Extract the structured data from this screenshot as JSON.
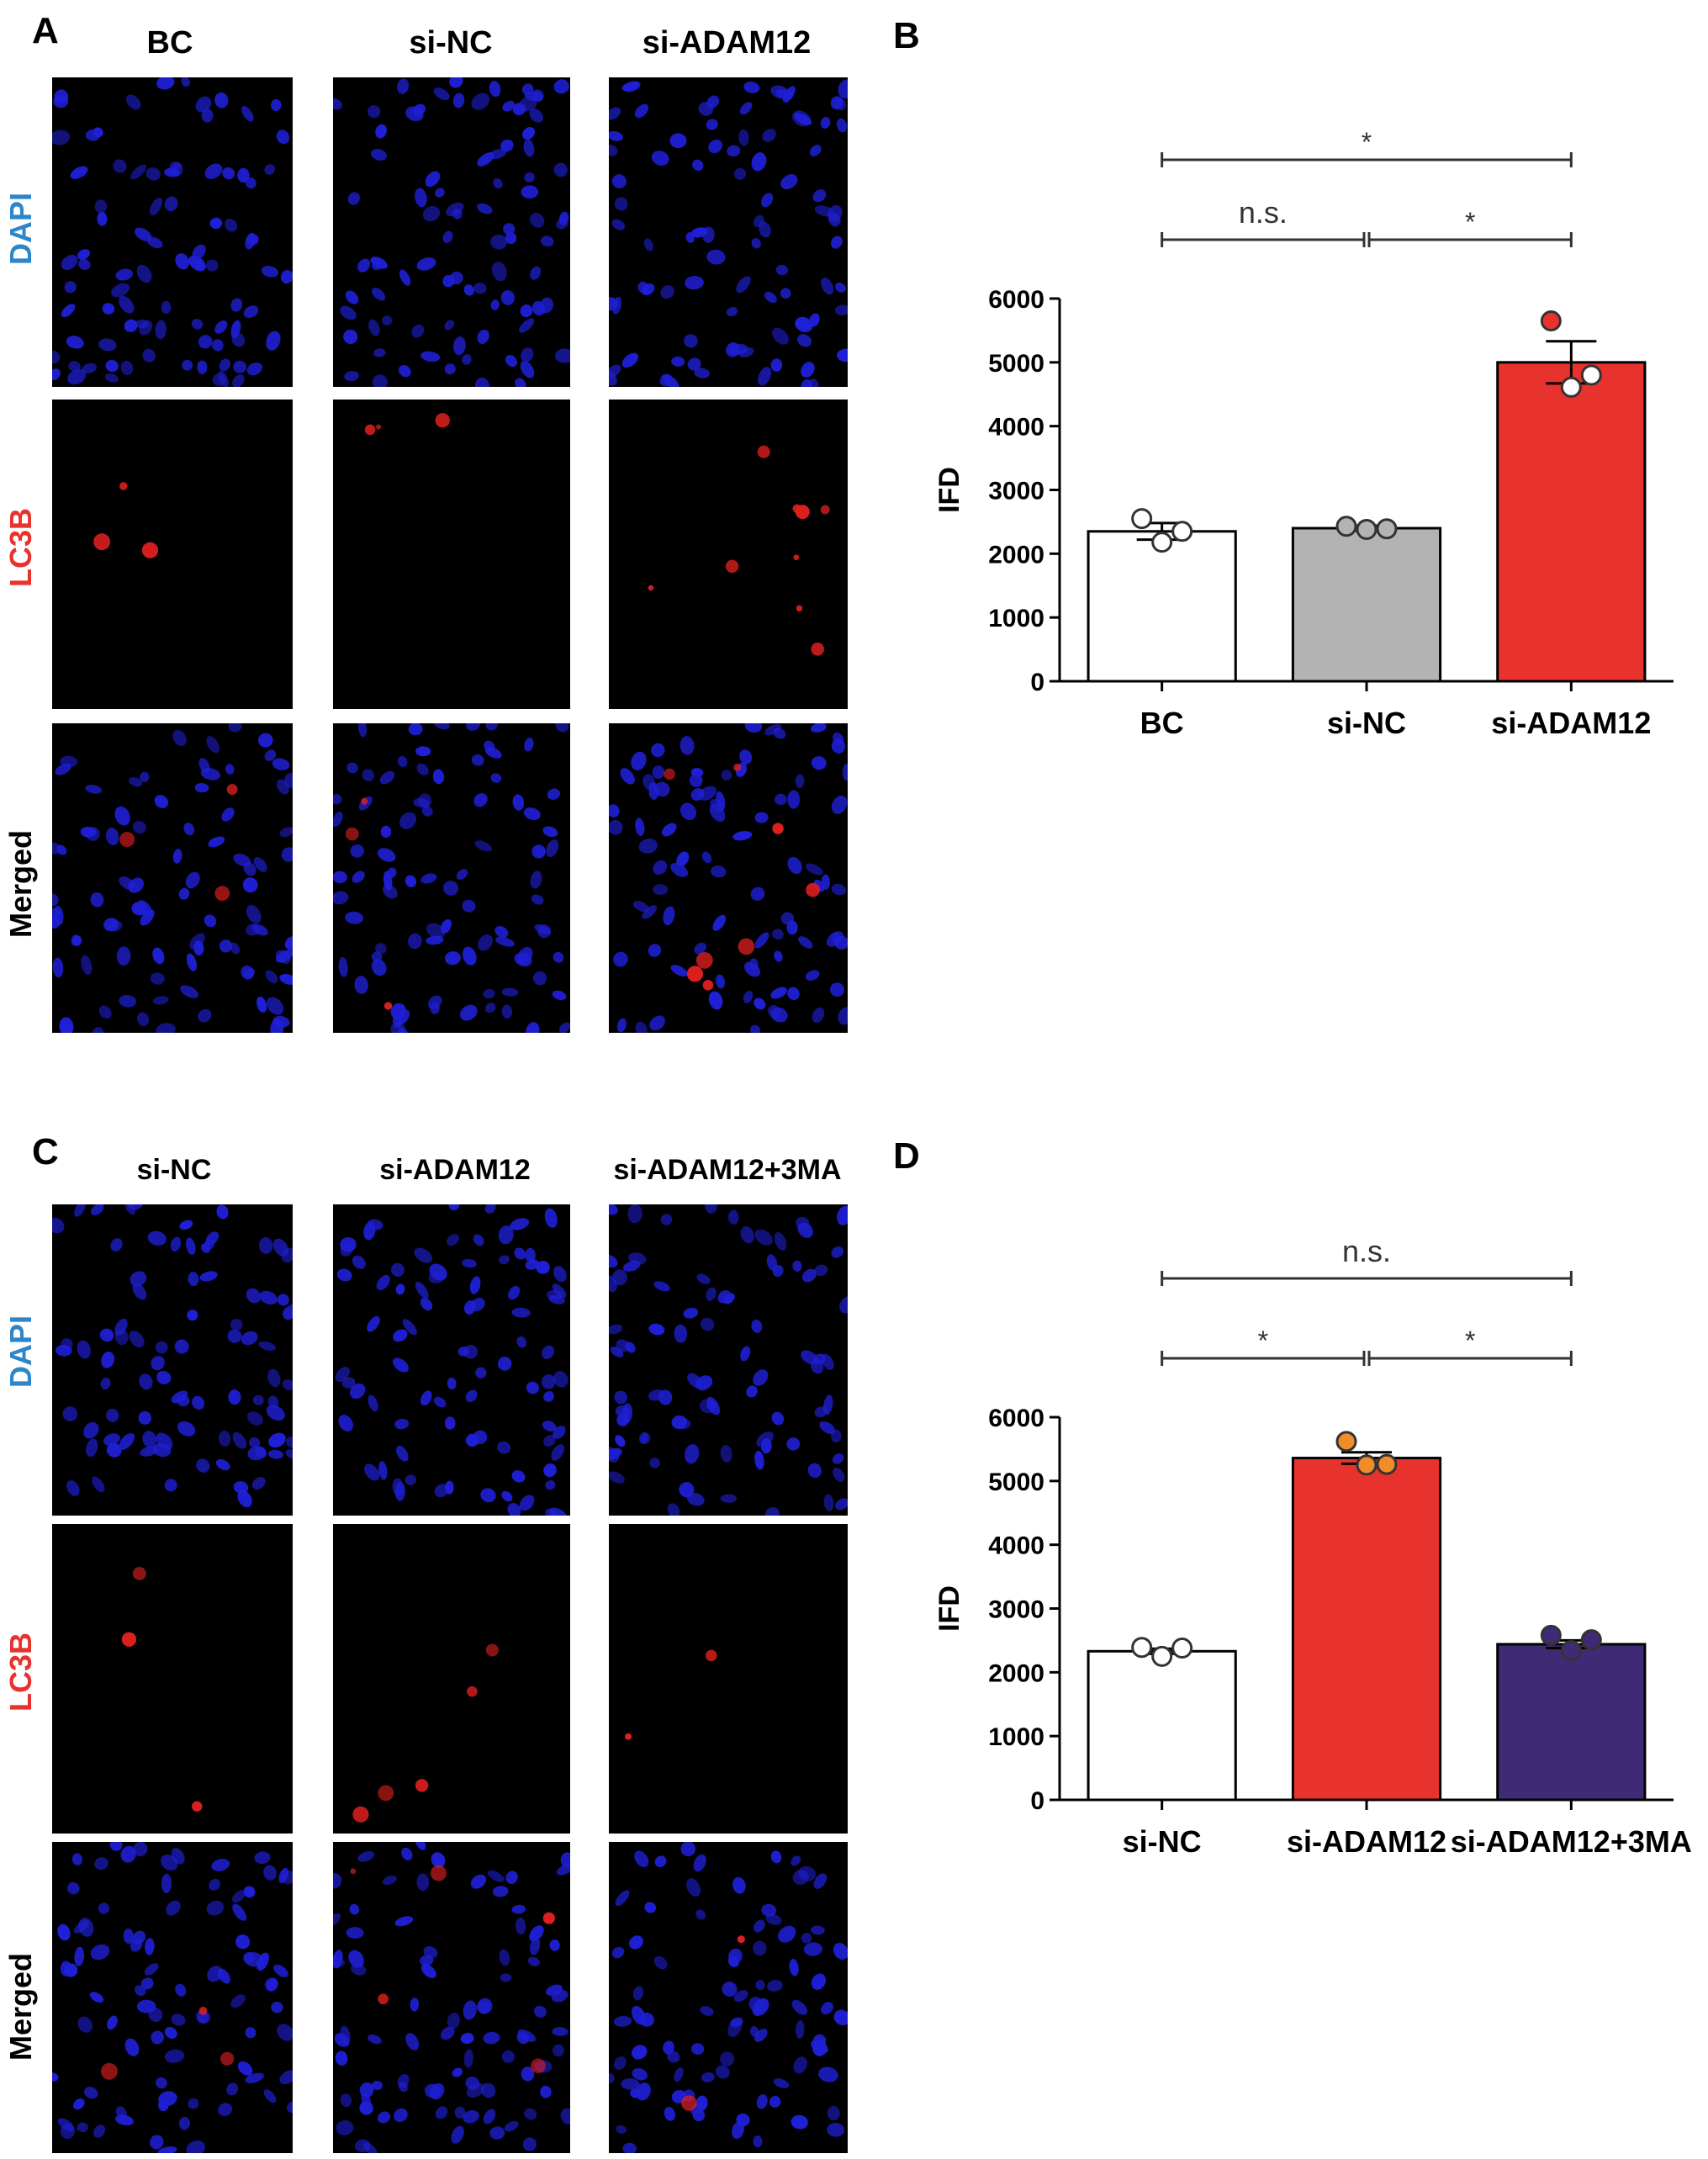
{
  "panels": {
    "A": {
      "letter": "A",
      "columns": [
        "BC",
        "si-NC",
        "si-ADAM12"
      ],
      "rows": [
        "DAPI",
        "LC3B",
        "Merged"
      ]
    },
    "B": {
      "letter": "B"
    },
    "C": {
      "letter": "C",
      "columns": [
        "si-NC",
        "si-ADAM12",
        "si-ADAM12+3MA"
      ],
      "rows": [
        "DAPI",
        "LC3B",
        "Merged"
      ]
    },
    "D": {
      "letter": "D"
    }
  },
  "colors": {
    "dapi_label": "#2e86c9",
    "lc3b_label": "#e8322e",
    "nuclei": "#1f1fd6",
    "puncta": "#e02020"
  },
  "chart_data": [
    {
      "panel": "B",
      "type": "bar",
      "categories": [
        "BC",
        "si-NC",
        "si-ADAM12"
      ],
      "values": [
        2350,
        2400,
        5000
      ],
      "sem": [
        130,
        40,
        330
      ],
      "points": [
        [
          2550,
          2180,
          2350
        ],
        [
          2430,
          2380,
          2390
        ],
        [
          5650,
          4610,
          4800
        ]
      ],
      "bar_colors": [
        "#ffffff",
        "#b3b3b3",
        "#e8322e"
      ],
      "point_fills": [
        "#ffffff",
        "#b3b3b3",
        "mixed"
      ],
      "ylabel": "IFD",
      "ylim": [
        0,
        6000
      ],
      "yticks": [
        "0",
        "1000",
        "2000",
        "3000",
        "4000",
        "5000",
        "6000"
      ],
      "significance": [
        {
          "from": 0,
          "to": 2,
          "label": "*"
        },
        {
          "from": 0,
          "to": 1,
          "label": "n.s."
        },
        {
          "from": 1,
          "to": 2,
          "label": "*"
        }
      ]
    },
    {
      "panel": "D",
      "type": "bar",
      "categories": [
        "si-NC",
        "si-ADAM12",
        "si-ADAM12+3MA"
      ],
      "values": [
        2330,
        5360,
        2440
      ],
      "sem": [
        40,
        90,
        60
      ],
      "points": [
        [
          2390,
          2250,
          2380
        ],
        [
          5620,
          5250,
          5260
        ],
        [
          2580,
          2340,
          2510
        ]
      ],
      "bar_colors": [
        "#ffffff",
        "#e8322e",
        "#3f2a75"
      ],
      "point_fills": [
        "#ffffff",
        "#f28c28",
        "#3f2a75"
      ],
      "ylabel": "IFD",
      "ylim": [
        0,
        6000
      ],
      "yticks": [
        "0",
        "1000",
        "2000",
        "3000",
        "4000",
        "5000",
        "6000"
      ],
      "significance": [
        {
          "from": 0,
          "to": 2,
          "label": "n.s."
        },
        {
          "from": 0,
          "to": 1,
          "label": "*"
        },
        {
          "from": 1,
          "to": 2,
          "label": "*"
        }
      ]
    }
  ]
}
